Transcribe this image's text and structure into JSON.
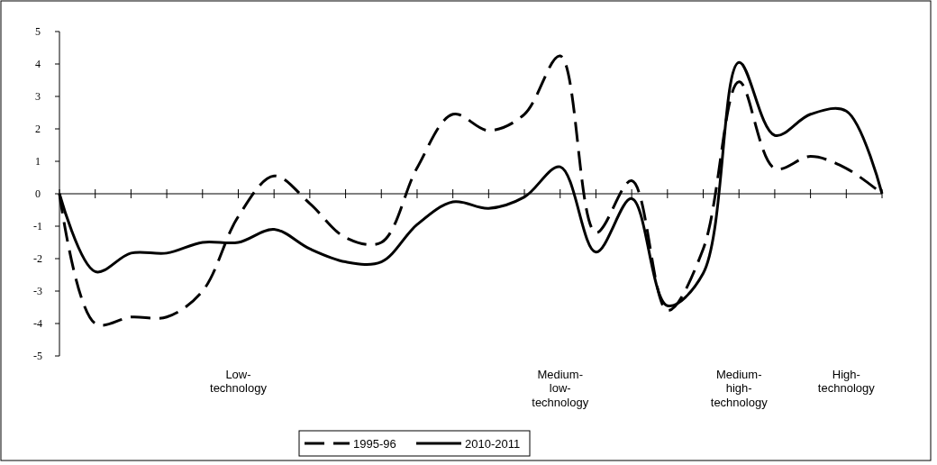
{
  "chart_data": {
    "type": "line",
    "categories": [
      null,
      null,
      null,
      null,
      null,
      "Low-technology",
      null,
      null,
      null,
      null,
      null,
      null,
      null,
      null,
      "Medium-low-technology",
      null,
      null,
      null,
      null,
      "Medium-high-technology",
      null,
      null,
      "High-technology",
      null
    ],
    "series": [
      {
        "name": "1995-96",
        "color": "#000000",
        "line_style": "dashed",
        "values": [
          0,
          -4.0,
          -3.8,
          -3.8,
          -3.0,
          -0.7,
          0.55,
          -0.3,
          -1.35,
          -1.5,
          0.8,
          2.45,
          1.95,
          2.45,
          4.25,
          -1.2,
          0.4,
          -3.6,
          -1.7,
          3.45,
          0.78,
          1.15,
          0.78,
          0
        ]
      },
      {
        "name": "2010-2011",
        "color": "#000000",
        "line_style": "solid",
        "values": [
          0,
          -2.4,
          -1.83,
          -1.83,
          -1.5,
          -1.5,
          -1.1,
          -1.7,
          -2.1,
          -2.1,
          -0.95,
          -0.25,
          -0.45,
          -0.1,
          0.83,
          -1.8,
          -0.15,
          -3.45,
          -2.45,
          4.05,
          1.8,
          2.45,
          2.55,
          0
        ]
      }
    ],
    "ylim": [
      -5,
      5
    ],
    "yticks": [
      -5,
      -4,
      -3,
      -2,
      -1,
      0,
      1,
      2,
      3,
      4,
      5
    ],
    "legend": "bottom",
    "marker": "none"
  }
}
